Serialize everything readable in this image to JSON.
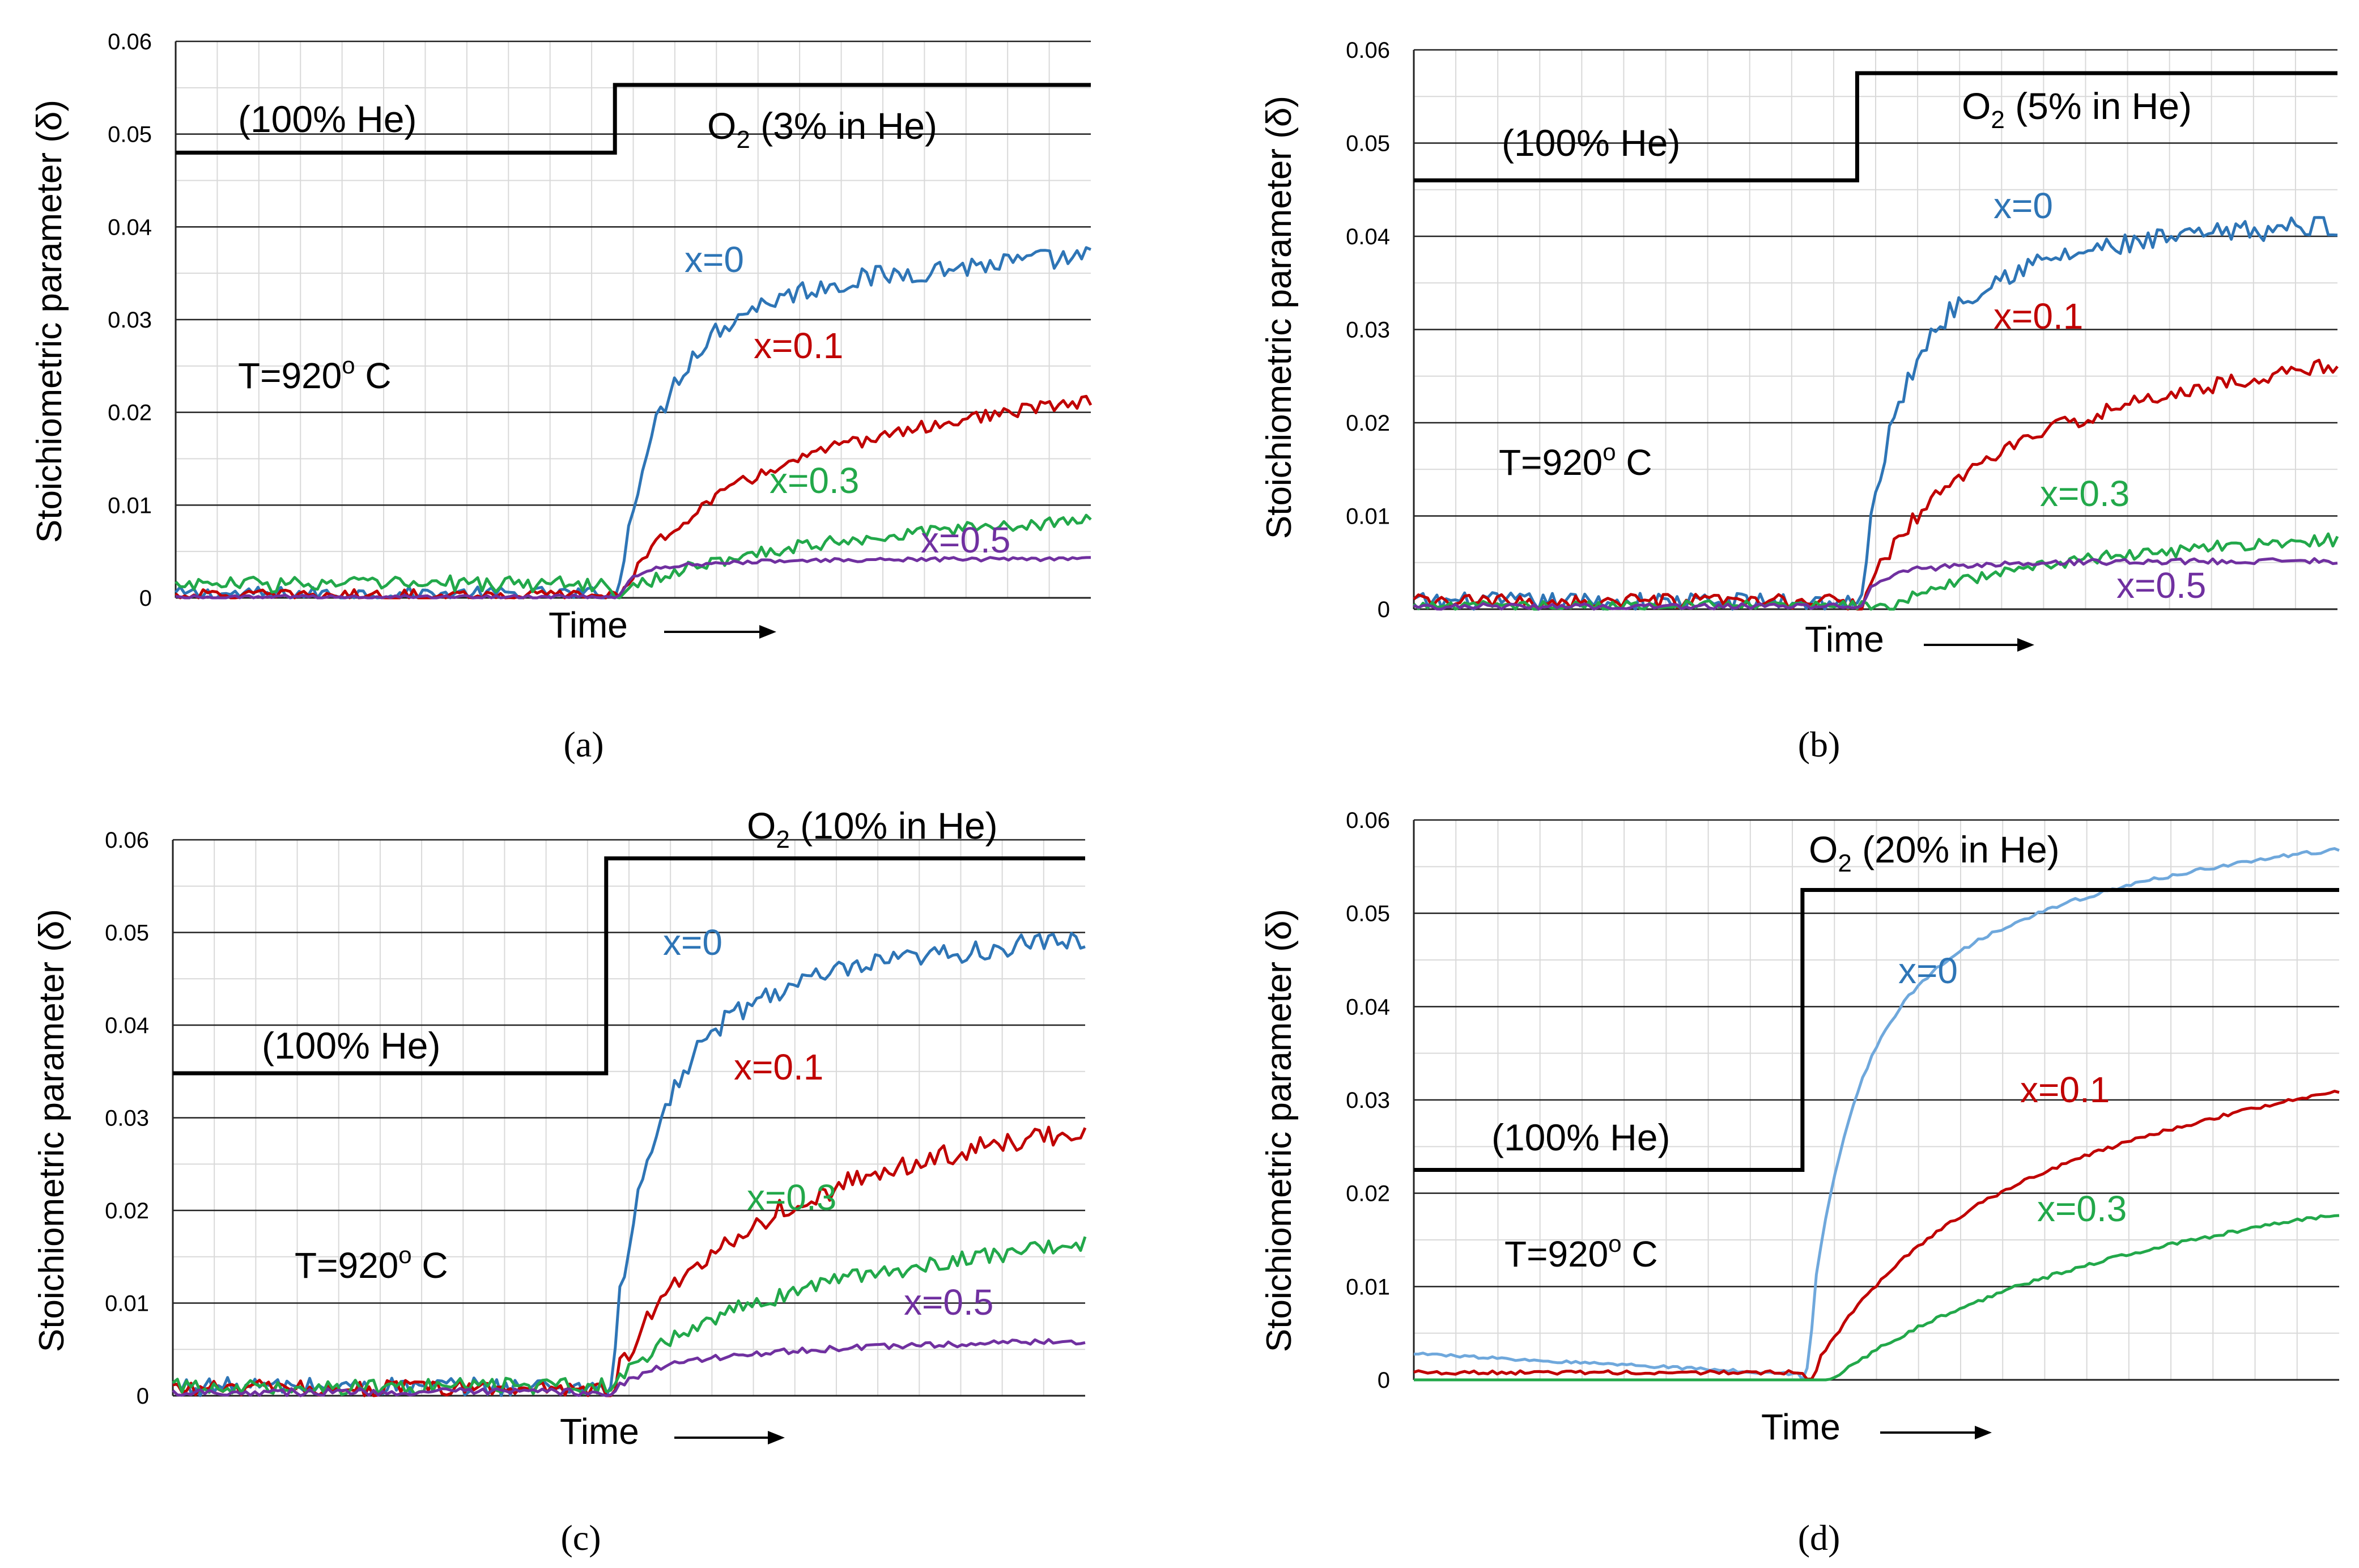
{
  "chart_data": [
    {
      "panel": "a",
      "caption": "(a)",
      "type": "line",
      "ylabel": "Stoichiometric parameter (δ)",
      "xlabel": "Time",
      "ylim": [
        0,
        0.06
      ],
      "yticks": [
        "0",
        "0.01",
        "0.02",
        "0.03",
        "0.04",
        "0.05",
        "0.06"
      ],
      "gas_before": "(100% He)",
      "gas_after_prefix": "O",
      "gas_after_sub": "2",
      "gas_after_suffix": " (3% in He)",
      "temp_prefix": "T=920",
      "temp_sup": "o",
      "temp_suffix": " C",
      "step": {
        "switch_t": 0.48,
        "before": 0.048,
        "after": 0.0553
      },
      "series": [
        {
          "name": "x=0",
          "color": "#2e75b6",
          "final": 0.0385,
          "tau": 0.14,
          "delay": 0.0,
          "fast": 0.75,
          "noise": 0.0012,
          "base": 0.0004,
          "pre_noise": 0.0008
        },
        {
          "name": "x=0.1",
          "color": "#c00000",
          "final": 0.028,
          "tau": 0.26,
          "delay": 0.0,
          "fast": 0.4,
          "noise": 0.0007,
          "base": 0.0003,
          "pre_noise": 0.0006
        },
        {
          "name": "x=0.3",
          "color": "#22a84a",
          "final": 0.0115,
          "tau": 0.25,
          "delay": 0.0,
          "fast": 0.3,
          "noise": 0.0007,
          "base": 0.0015,
          "pre_noise": 0.0009
        },
        {
          "name": "x=0.5",
          "color": "#7030a0",
          "final": 0.0042,
          "tau": 0.05,
          "delay": 0.0,
          "fast": 0.7,
          "noise": 0.0002,
          "base": 0.0001,
          "pre_noise": 0.0002
        }
      ],
      "series_labels": [
        "x=0",
        "x=0.1",
        "x=0.3",
        "x=0.5"
      ]
    },
    {
      "panel": "b",
      "caption": "(b)",
      "type": "line",
      "ylabel": "Stoichiometric parameter (δ)",
      "xlabel": "Time",
      "ylim": [
        0,
        0.06
      ],
      "yticks": [
        "0",
        "0.01",
        "0.02",
        "0.03",
        "0.04",
        "0.05",
        "0.06"
      ],
      "gas_before": "(100% He)",
      "gas_after_prefix": "O",
      "gas_after_sub": "2",
      "gas_after_suffix": " (5% in He)",
      "temp_prefix": "T=920",
      "temp_sup": "o",
      "temp_suffix": " C",
      "step": {
        "switch_t": 0.48,
        "before": 0.046,
        "after": 0.0575
      },
      "series": [
        {
          "name": "x=0",
          "color": "#2e75b6",
          "final": 0.043,
          "tau": 0.13,
          "delay": 0.0,
          "fast": 0.75,
          "noise": 0.0012,
          "base": 0.0008,
          "pre_noise": 0.001
        },
        {
          "name": "x=0.1",
          "color": "#c00000",
          "final": 0.033,
          "tau": 0.22,
          "delay": 0.0,
          "fast": 0.4,
          "noise": 0.0008,
          "base": 0.0008,
          "pre_noise": 0.0008
        },
        {
          "name": "x=0.3",
          "color": "#22a84a",
          "final": 0.0105,
          "tau": 0.25,
          "delay": 0.03,
          "fast": 0.3,
          "noise": 0.0007,
          "base": 0.0004,
          "pre_noise": 0.0005
        },
        {
          "name": "x=0.5",
          "color": "#7030a0",
          "final": 0.0052,
          "tau": 0.05,
          "delay": 0.0,
          "fast": 0.7,
          "noise": 0.0003,
          "base": 0.0003,
          "pre_noise": 0.0003
        }
      ],
      "series_labels": [
        "x=0",
        "x=0.1",
        "x=0.3",
        "x=0.5"
      ]
    },
    {
      "panel": "c",
      "caption": "(c)",
      "type": "line",
      "ylabel": "Stoichiometric parameter (δ)",
      "xlabel": "Time",
      "ylim": [
        0,
        0.06
      ],
      "yticks": [
        "0",
        "0.01",
        "0.02",
        "0.03",
        "0.04",
        "0.05",
        "0.06"
      ],
      "gas_before": "(100% He)",
      "gas_after_prefix": "O",
      "gas_after_sub": "2",
      "gas_after_suffix": " (10% in He)",
      "temp_prefix": "T=920",
      "temp_sup": "o",
      "temp_suffix": " C",
      "step": {
        "switch_t": 0.475,
        "before": 0.0348,
        "after": 0.058
      },
      "series": [
        {
          "name": "x=0",
          "color": "#2e75b6",
          "final": 0.0515,
          "tau": 0.14,
          "delay": 0.0,
          "fast": 0.75,
          "noise": 0.0012,
          "base": 0.001,
          "pre_noise": 0.001
        },
        {
          "name": "x=0.1",
          "color": "#c00000",
          "final": 0.037,
          "tau": 0.24,
          "delay": 0.0,
          "fast": 0.4,
          "noise": 0.0012,
          "base": 0.0008,
          "pre_noise": 0.0009
        },
        {
          "name": "x=0.3",
          "color": "#22a84a",
          "final": 0.0215,
          "tau": 0.22,
          "delay": 0.0,
          "fast": 0.3,
          "noise": 0.0009,
          "base": 0.001,
          "pre_noise": 0.0009
        },
        {
          "name": "x=0.5",
          "color": "#7030a0",
          "final": 0.0063,
          "tau": 0.12,
          "delay": 0.0,
          "fast": 0.5,
          "noise": 0.0003,
          "base": 0.0004,
          "pre_noise": 0.0004
        }
      ],
      "series_labels": [
        "x=0",
        "x=0.1",
        "x=0.3",
        "x=0.5"
      ]
    },
    {
      "panel": "d",
      "caption": "(d)",
      "type": "line",
      "ylabel": "Stoichiometric parameter (δ)",
      "xlabel": "Time",
      "ylim": [
        0,
        0.06
      ],
      "yticks": [
        "0",
        "0.01",
        "0.02",
        "0.03",
        "0.04",
        "0.05",
        "0.06"
      ],
      "gas_before": "(100% He)",
      "gas_after_prefix": "O",
      "gas_after_sub": "2",
      "gas_after_suffix": " (20% in He)",
      "temp_prefix": "T=920",
      "temp_sup": "o",
      "temp_suffix": " C",
      "step": {
        "switch_t": 0.42,
        "before": 0.0225,
        "after": 0.0525
      },
      "series": [
        {
          "name": "x=0",
          "color": "#6fa8dc",
          "final": 0.06,
          "tau": 0.13,
          "delay": 0.0,
          "fast": 0.6,
          "noise": 0.0002,
          "base": 0.0022,
          "pre_noise": 0.0002
        },
        {
          "name": "x=0.1",
          "color": "#c00000",
          "final": 0.044,
          "tau": 0.33,
          "delay": 0.005,
          "fast": 0.35,
          "noise": 0.0002,
          "base": 0.001,
          "pre_noise": 0.0002
        },
        {
          "name": "x=0.3",
          "color": "#22a84a",
          "final": 0.033,
          "tau": 0.55,
          "delay": 0.03,
          "fast": 0.3,
          "noise": 0.0002,
          "base": 0.0,
          "pre_noise": 0.0
        }
      ],
      "series_labels": [
        "x=0",
        "x=0.1",
        "x=0.3"
      ]
    }
  ]
}
